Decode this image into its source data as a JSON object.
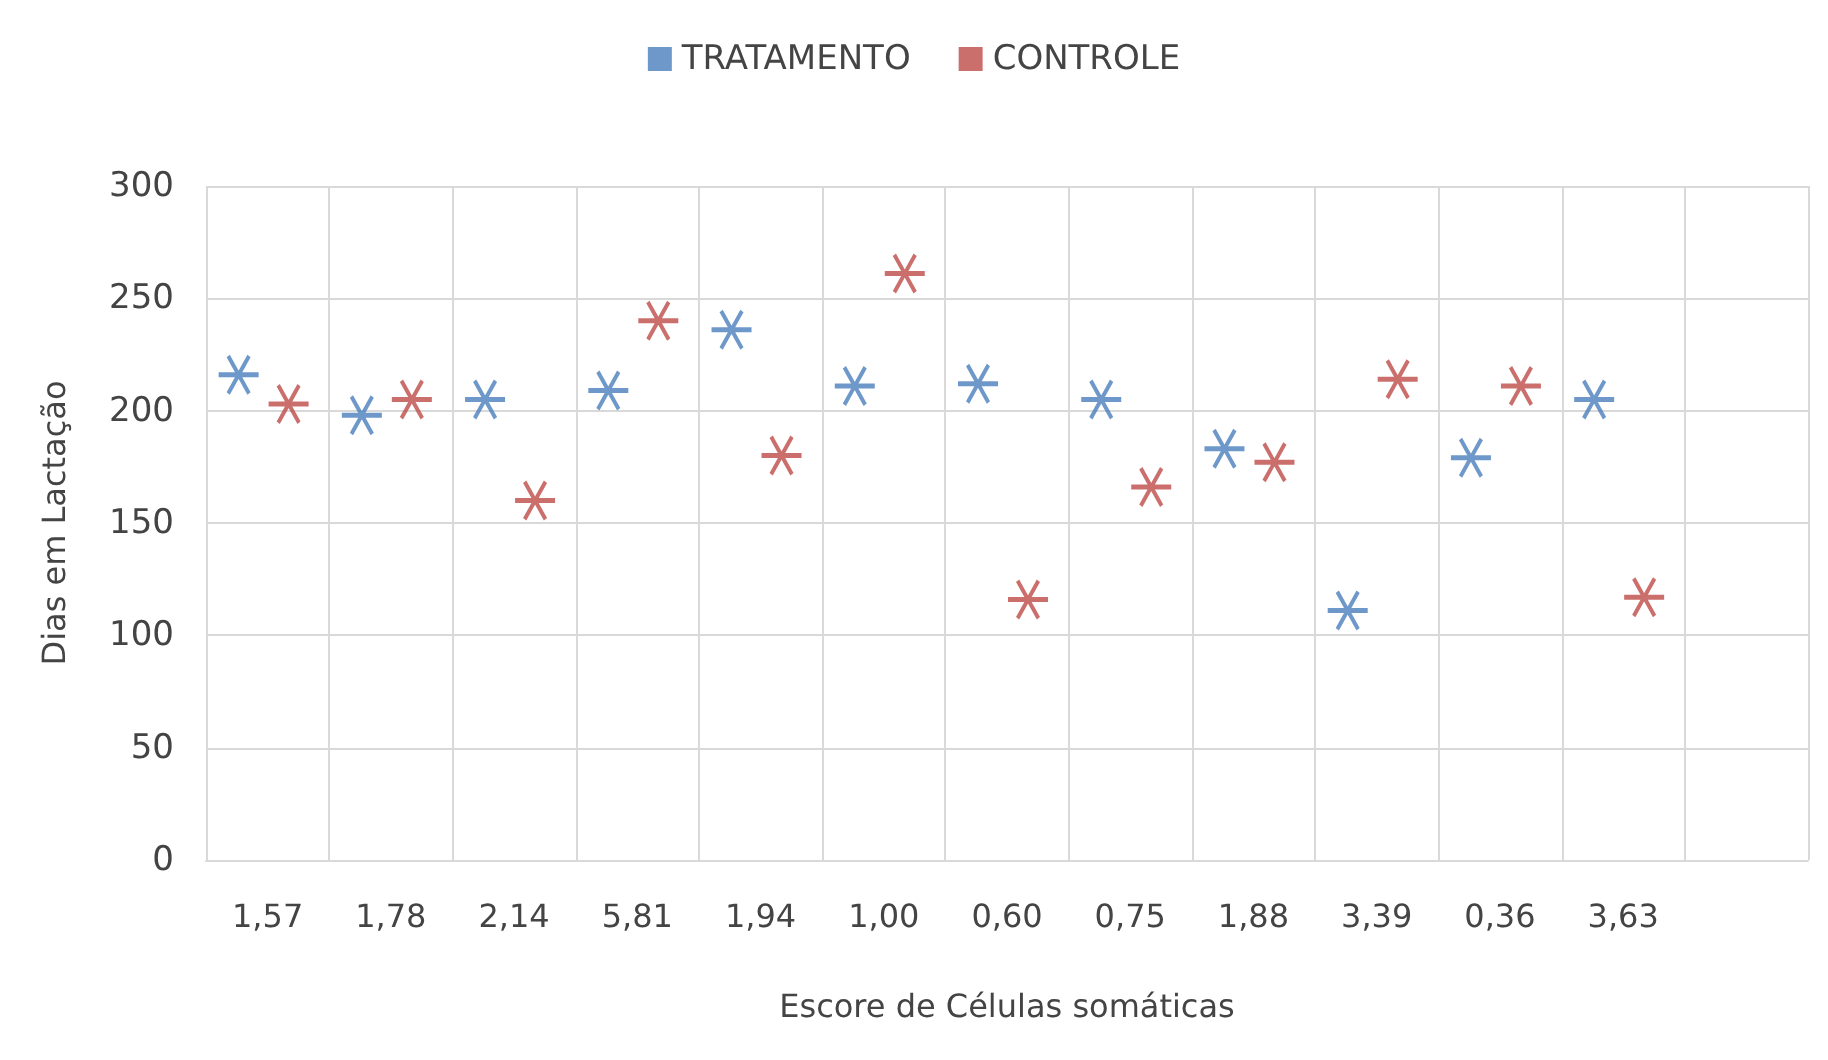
{
  "chart_data": {
    "type": "scatter",
    "xlabel": "Escore de Células somáticas",
    "ylabel": "Dias em Lactação",
    "categories": [
      "1,57",
      "1,78",
      "2,14",
      "5,81",
      "1,94",
      "1,00",
      "0,60",
      "0,75",
      "1,88",
      "3,39",
      "0,36",
      "3,63",
      null
    ],
    "series": [
      {
        "name": "TRATAMENTO",
        "color": "#4a7ebb",
        "values": [
          216,
          198,
          205,
          209,
          236,
          211,
          212,
          205,
          183,
          111,
          179,
          205,
          null
        ]
      },
      {
        "name": "CONTROLE",
        "color": "#be4b48",
        "values": [
          203,
          205,
          160,
          240,
          180,
          261,
          116,
          166,
          177,
          214,
          211,
          117,
          null
        ]
      }
    ],
    "ylim": [
      0,
      300
    ],
    "yticks": [
      0,
      50,
      100,
      150,
      200,
      250,
      300
    ],
    "grid": true,
    "legend": "top",
    "marker": "cross"
  }
}
